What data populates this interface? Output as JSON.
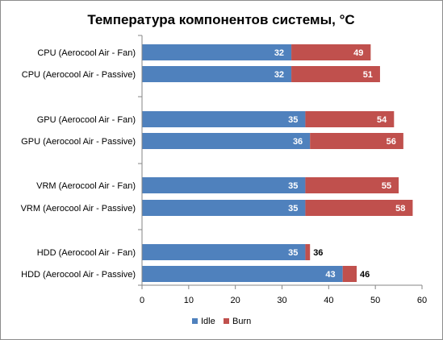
{
  "colors": {
    "idle": "#4f81bd",
    "burn": "#c0504d"
  },
  "chart_data": {
    "type": "bar",
    "orientation": "horizontal",
    "stacked": true,
    "title": "Температура компонентов системы, °C",
    "categories": [
      "CPU (Aerocool Air - Fan)",
      "CPU (Aerocool Air - Passive)",
      "GPU  (Aerocool Air - Fan)",
      "GPU  (Aerocool Air - Passive)",
      "VRM (Aerocool Air - Fan)",
      "VRM (Aerocool Air - Passive)",
      "HDD (Aerocool Air - Fan)",
      "HDD (Aerocool Air - Passive)"
    ],
    "groups": [
      [
        0,
        1
      ],
      [
        2,
        3
      ],
      [
        4,
        5
      ],
      [
        6,
        7
      ]
    ],
    "series": [
      {
        "name": "Idle",
        "values": [
          32,
          32,
          35,
          36,
          35,
          35,
          35,
          43
        ]
      },
      {
        "name": "Burn",
        "totals": [
          49,
          51,
          54,
          56,
          55,
          58,
          36,
          46
        ]
      }
    ],
    "xlim": [
      0,
      60
    ],
    "xticks": [
      "0",
      "10",
      "20",
      "30",
      "40",
      "50",
      "60"
    ],
    "grid": false,
    "legend": "bottom"
  }
}
